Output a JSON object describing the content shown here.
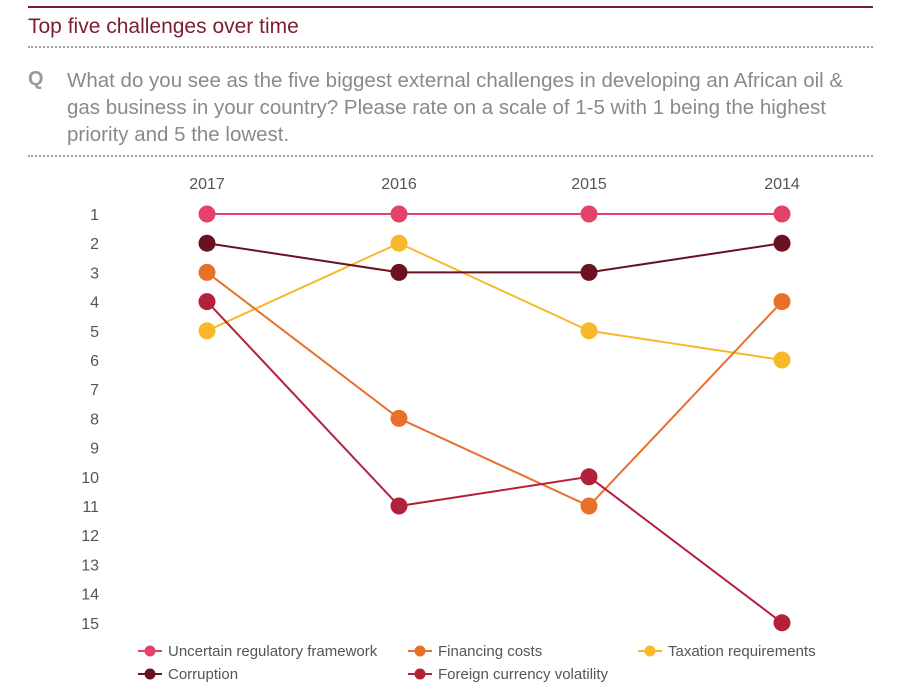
{
  "header": {
    "title": "Top five challenges over time",
    "q_label": "Q",
    "question": "What do you see as the five biggest external challenges in developing an African oil & gas business in your country? Please rate on a scale of 1-5 with 1 being the highest priority and 5 the lowest."
  },
  "chart_data": {
    "type": "line",
    "title": "Top five challenges over time",
    "categories": [
      "2017",
      "2016",
      "2015",
      "2014"
    ],
    "y_ticks": [
      "1",
      "2",
      "3",
      "4",
      "5",
      "6",
      "7",
      "8",
      "9",
      "10",
      "11",
      "12",
      "13",
      "14",
      "15"
    ],
    "ylim": [
      1,
      15
    ],
    "y_inverted": true,
    "series": [
      {
        "name": "Uncertain regulatory framework",
        "color": "#e5426a",
        "values": [
          1,
          1,
          1,
          1
        ]
      },
      {
        "name": "Corruption",
        "color": "#6b1222",
        "values": [
          2,
          3,
          3,
          2
        ]
      },
      {
        "name": "Financing costs",
        "color": "#e8702a",
        "values": [
          3,
          8,
          11,
          4
        ]
      },
      {
        "name": "Taxation requirements",
        "color": "#f7b92b",
        "values": [
          5,
          2,
          5,
          6
        ]
      },
      {
        "name": "Foreign currency volatility",
        "color": "#b3203a",
        "values": [
          4,
          11,
          10,
          15
        ]
      }
    ],
    "legend_position": "bottom"
  }
}
